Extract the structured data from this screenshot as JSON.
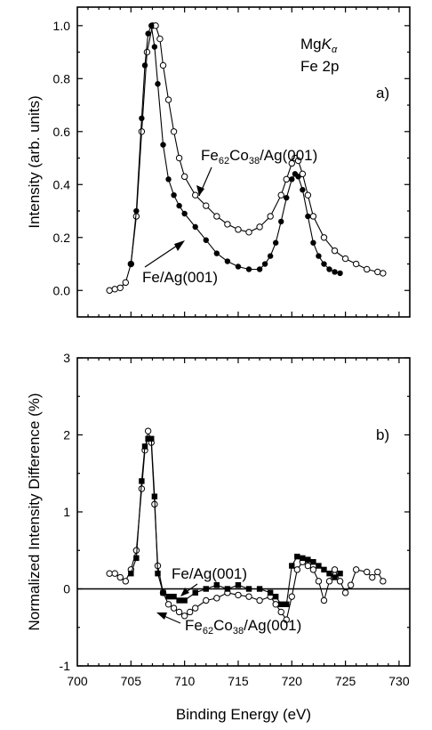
{
  "chart_data": [
    {
      "type": "line",
      "panel_label": "a)",
      "annotations": [
        {
          "id": "source",
          "text": "MgKα",
          "parts": [
            "Mg",
            "K",
            "α"
          ]
        },
        {
          "id": "core",
          "text": "Fe 2p"
        },
        {
          "id": "alloy",
          "text": "Fe62Co38/Ag(001)",
          "parts": [
            "Fe",
            "62",
            "Co",
            "38",
            "/Ag(001)"
          ]
        },
        {
          "id": "fe",
          "text": "Fe/Ag(001)"
        }
      ],
      "xlim": [
        700,
        731
      ],
      "ylim": [
        -0.1,
        1.07
      ],
      "xlabel": "",
      "ylabel": "Intensity (arb. units)",
      "y_ticks": [
        "0.0",
        "0.2",
        "0.4",
        "0.6",
        "0.8",
        "1.0"
      ],
      "grid": false,
      "series": [
        {
          "name": "Fe62Co38/Ag(001)",
          "marker": "open-circle",
          "x": [
            703,
            703.5,
            704,
            704.5,
            705,
            705.5,
            706,
            706.5,
            707,
            707.3,
            707.7,
            708,
            708.5,
            709,
            709.5,
            710,
            711,
            712,
            713,
            714,
            715,
            716,
            717,
            718,
            719,
            719.5,
            720,
            720.3,
            720.6,
            721,
            721.5,
            722,
            723,
            724,
            725,
            726,
            727,
            728,
            728.5
          ],
          "values": [
            0.0,
            0.005,
            0.01,
            0.03,
            0.1,
            0.28,
            0.6,
            0.9,
            1.0,
            1.0,
            0.95,
            0.85,
            0.72,
            0.6,
            0.5,
            0.43,
            0.36,
            0.32,
            0.28,
            0.25,
            0.23,
            0.22,
            0.24,
            0.28,
            0.36,
            0.42,
            0.48,
            0.5,
            0.49,
            0.44,
            0.36,
            0.28,
            0.2,
            0.15,
            0.12,
            0.1,
            0.08,
            0.07,
            0.065
          ]
        },
        {
          "name": "Fe/Ag(001)",
          "marker": "filled-circle",
          "x": [
            705,
            705.5,
            706,
            706.3,
            706.6,
            706.9,
            707.2,
            707.5,
            708,
            708.5,
            709,
            709.5,
            710,
            711,
            712,
            713,
            714,
            715,
            716,
            717,
            717.5,
            718,
            718.5,
            719,
            719.5,
            720,
            720.3,
            720.6,
            721,
            721.5,
            722,
            722.5,
            723,
            723.5,
            724,
            724.5
          ],
          "values": [
            0.1,
            0.3,
            0.65,
            0.85,
            0.97,
            1.0,
            0.92,
            0.78,
            0.55,
            0.42,
            0.36,
            0.32,
            0.29,
            0.24,
            0.19,
            0.14,
            0.11,
            0.09,
            0.08,
            0.08,
            0.1,
            0.13,
            0.18,
            0.26,
            0.35,
            0.42,
            0.44,
            0.43,
            0.38,
            0.28,
            0.18,
            0.13,
            0.1,
            0.08,
            0.07,
            0.065
          ]
        }
      ]
    },
    {
      "type": "line",
      "panel_label": "b)",
      "annotations": [
        {
          "id": "fe",
          "text": "Fe/Ag(001)"
        },
        {
          "id": "alloy",
          "text": "Fe62Co38/Ag(001)",
          "parts": [
            "Fe",
            "62",
            "Co",
            "38",
            "/Ag(001)"
          ]
        }
      ],
      "xlim": [
        700,
        731
      ],
      "ylim": [
        -1,
        3
      ],
      "xlabel": "Binding Energy (eV)",
      "ylabel": "Normalized Intensity Difference (%)",
      "x_ticks": [
        "700",
        "705",
        "710",
        "715",
        "720",
        "725",
        "730"
      ],
      "y_ticks": [
        "-1",
        "0",
        "1",
        "2",
        "3"
      ],
      "zero_line": true,
      "grid": false,
      "series": [
        {
          "name": "Fe62Co38/Ag(001)",
          "marker": "open-circle",
          "x": [
            703,
            703.5,
            704,
            704.5,
            705,
            705.5,
            706,
            706.3,
            706.6,
            706.9,
            707.2,
            707.5,
            708,
            708.5,
            709,
            709.5,
            710,
            710.5,
            711,
            712,
            713,
            714,
            715,
            716,
            717,
            718,
            718.5,
            719,
            719.5,
            720,
            720.5,
            721,
            721.5,
            722,
            722.5,
            723,
            723.5,
            724,
            724.5,
            725,
            725.5,
            726,
            727,
            727.5,
            728,
            728.5
          ],
          "values": [
            0.2,
            0.2,
            0.15,
            0.1,
            0.25,
            0.5,
            1.3,
            1.8,
            2.05,
            1.9,
            1.1,
            0.3,
            -0.05,
            -0.2,
            -0.25,
            -0.3,
            -0.35,
            -0.3,
            -0.25,
            -0.15,
            -0.12,
            -0.05,
            -0.08,
            -0.1,
            -0.15,
            -0.1,
            -0.2,
            -0.3,
            -0.4,
            -0.1,
            0.25,
            0.35,
            0.3,
            0.25,
            0.1,
            -0.15,
            0.1,
            0.25,
            0.1,
            -0.05,
            0.05,
            0.25,
            0.22,
            0.15,
            0.22,
            0.1
          ]
        },
        {
          "name": "Fe/Ag(001)",
          "marker": "filled-square",
          "x": [
            705,
            705.5,
            706,
            706.3,
            706.6,
            706.9,
            707.2,
            707.5,
            708,
            708.5,
            709,
            709.5,
            710,
            711,
            712,
            713,
            714,
            715,
            716,
            717,
            718,
            718.5,
            719,
            719.5,
            720,
            720.5,
            721,
            721.5,
            722,
            722.5,
            723,
            723.5,
            724,
            724.5
          ],
          "values": [
            0.2,
            0.4,
            1.4,
            1.85,
            1.95,
            1.95,
            1.2,
            0.2,
            -0.05,
            -0.1,
            -0.1,
            -0.15,
            -0.15,
            -0.05,
            0.0,
            0.05,
            0.0,
            0.05,
            0.0,
            0.0,
            -0.05,
            -0.1,
            -0.2,
            -0.2,
            0.3,
            0.42,
            0.4,
            0.38,
            0.35,
            0.3,
            0.25,
            0.2,
            0.15,
            0.2
          ]
        }
      ]
    }
  ],
  "colors": {
    "ink": "#000000",
    "background": "#ffffff",
    "open_fill": "#ffffff"
  }
}
